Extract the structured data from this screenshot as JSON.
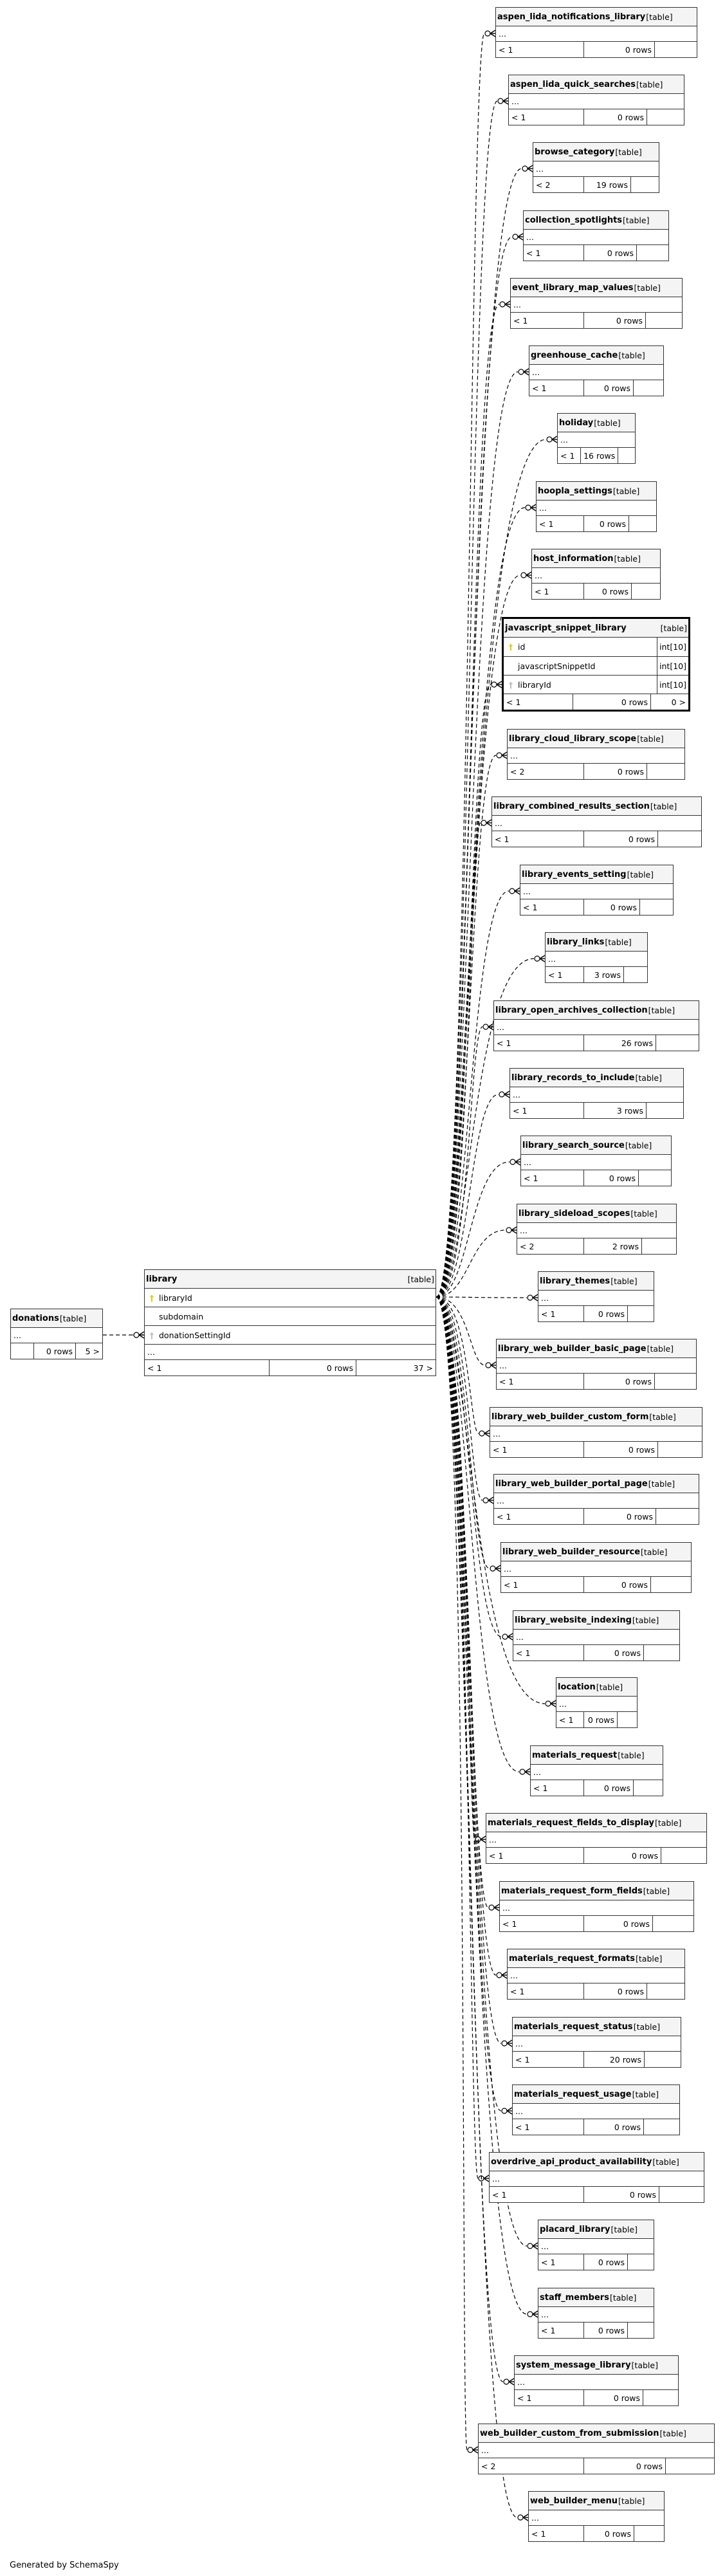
{
  "footer": "Generated by SchemaSpy",
  "colors": {
    "primary_key": "#d8d000",
    "foreign_key": "#bbbbbb",
    "header_bg": "#f4f4f4",
    "border": "#333333"
  },
  "focus_table": {
    "name": "library",
    "type": "[table]",
    "columns": [
      {
        "name": "libraryId",
        "key": "primary-key"
      },
      {
        "name": "subdomain",
        "key": ""
      },
      {
        "name": "donationSettingId",
        "key": "foreign-key"
      },
      {
        "name": "...",
        "key": ""
      }
    ],
    "footer": {
      "parents": "< 1",
      "rows": "0 rows",
      "children": "37 >"
    }
  },
  "parent_table": {
    "name": "donations",
    "type": "[table]",
    "ellipsis": "...",
    "footer": {
      "parents": "",
      "rows": "0 rows",
      "children": "5 >"
    }
  },
  "child_tables": [
    {
      "name": "aspen_lida_notifications_library",
      "type": "[table]",
      "ellipsis": "...",
      "parents": "< 1",
      "rows": "0 rows",
      "children": ""
    },
    {
      "name": "aspen_lida_quick_searches",
      "type": "[table]",
      "ellipsis": "...",
      "parents": "< 1",
      "rows": "0 rows",
      "children": ""
    },
    {
      "name": "browse_category",
      "type": "[table]",
      "ellipsis": "...",
      "parents": "< 2",
      "rows": "19 rows",
      "children": ""
    },
    {
      "name": "collection_spotlights",
      "type": "[table]",
      "ellipsis": "...",
      "parents": "< 1",
      "rows": "0 rows",
      "children": ""
    },
    {
      "name": "event_library_map_values",
      "type": "[table]",
      "ellipsis": "...",
      "parents": "< 1",
      "rows": "0 rows",
      "children": ""
    },
    {
      "name": "greenhouse_cache",
      "type": "[table]",
      "ellipsis": "...",
      "parents": "< 1",
      "rows": "0 rows",
      "children": ""
    },
    {
      "name": "holiday",
      "type": "[table]",
      "ellipsis": "...",
      "parents": "< 1",
      "rows": "16 rows",
      "children": ""
    },
    {
      "name": "hoopla_settings",
      "type": "[table]",
      "ellipsis": "...",
      "parents": "< 1",
      "rows": "0 rows",
      "children": ""
    },
    {
      "name": "host_information",
      "type": "[table]",
      "ellipsis": "...",
      "parents": "< 1",
      "rows": "0 rows",
      "children": ""
    },
    {
      "name": "javascript_snippet_library",
      "type": "[table]",
      "parents": "< 1",
      "rows": "0 rows",
      "children": "0 >",
      "columns": [
        {
          "name": "id",
          "type": "int[10]",
          "key": "primary-key"
        },
        {
          "name": "javascriptSnippetId",
          "type": "int[10]",
          "key": ""
        },
        {
          "name": "libraryId",
          "type": "int[10]",
          "key": "foreign-key"
        }
      ]
    },
    {
      "name": "library_cloud_library_scope",
      "type": "[table]",
      "ellipsis": "...",
      "parents": "< 2",
      "rows": "0 rows",
      "children": ""
    },
    {
      "name": "library_combined_results_section",
      "type": "[table]",
      "ellipsis": "...",
      "parents": "< 1",
      "rows": "0 rows",
      "children": ""
    },
    {
      "name": "library_events_setting",
      "type": "[table]",
      "ellipsis": "...",
      "parents": "< 1",
      "rows": "0 rows",
      "children": ""
    },
    {
      "name": "library_links",
      "type": "[table]",
      "ellipsis": "...",
      "parents": "< 1",
      "rows": "3 rows",
      "children": ""
    },
    {
      "name": "library_open_archives_collection",
      "type": "[table]",
      "ellipsis": "...",
      "parents": "< 1",
      "rows": "26 rows",
      "children": ""
    },
    {
      "name": "library_records_to_include",
      "type": "[table]",
      "ellipsis": "...",
      "parents": "< 1",
      "rows": "3 rows",
      "children": ""
    },
    {
      "name": "library_search_source",
      "type": "[table]",
      "ellipsis": "...",
      "parents": "< 1",
      "rows": "0 rows",
      "children": ""
    },
    {
      "name": "library_sideload_scopes",
      "type": "[table]",
      "ellipsis": "...",
      "parents": "< 2",
      "rows": "2 rows",
      "children": ""
    },
    {
      "name": "library_themes",
      "type": "[table]",
      "ellipsis": "...",
      "parents": "< 1",
      "rows": "0 rows",
      "children": ""
    },
    {
      "name": "library_web_builder_basic_page",
      "type": "[table]",
      "ellipsis": "...",
      "parents": "< 1",
      "rows": "0 rows",
      "children": ""
    },
    {
      "name": "library_web_builder_custom_form",
      "type": "[table]",
      "ellipsis": "...",
      "parents": "< 1",
      "rows": "0 rows",
      "children": ""
    },
    {
      "name": "library_web_builder_portal_page",
      "type": "[table]",
      "ellipsis": "...",
      "parents": "< 1",
      "rows": "0 rows",
      "children": ""
    },
    {
      "name": "library_web_builder_resource",
      "type": "[table]",
      "ellipsis": "...",
      "parents": "< 1",
      "rows": "0 rows",
      "children": ""
    },
    {
      "name": "library_website_indexing",
      "type": "[table]",
      "ellipsis": "...",
      "parents": "< 1",
      "rows": "0 rows",
      "children": ""
    },
    {
      "name": "location",
      "type": "[table]",
      "ellipsis": "...",
      "parents": "< 1",
      "rows": "0 rows",
      "children": ""
    },
    {
      "name": "materials_request",
      "type": "[table]",
      "ellipsis": "...",
      "parents": "< 1",
      "rows": "0 rows",
      "children": ""
    },
    {
      "name": "materials_request_fields_to_display",
      "type": "[table]",
      "ellipsis": "...",
      "parents": "< 1",
      "rows": "0 rows",
      "children": ""
    },
    {
      "name": "materials_request_form_fields",
      "type": "[table]",
      "ellipsis": "...",
      "parents": "< 1",
      "rows": "0 rows",
      "children": ""
    },
    {
      "name": "materials_request_formats",
      "type": "[table]",
      "ellipsis": "...",
      "parents": "< 1",
      "rows": "0 rows",
      "children": ""
    },
    {
      "name": "materials_request_status",
      "type": "[table]",
      "ellipsis": "...",
      "parents": "< 1",
      "rows": "20 rows",
      "children": ""
    },
    {
      "name": "materials_request_usage",
      "type": "[table]",
      "ellipsis": "...",
      "parents": "< 1",
      "rows": "0 rows",
      "children": ""
    },
    {
      "name": "overdrive_api_product_availability",
      "type": "[table]",
      "ellipsis": "...",
      "parents": "< 1",
      "rows": "0 rows",
      "children": ""
    },
    {
      "name": "placard_library",
      "type": "[table]",
      "ellipsis": "...",
      "parents": "< 1",
      "rows": "0 rows",
      "children": ""
    },
    {
      "name": "staff_members",
      "type": "[table]",
      "ellipsis": "...",
      "parents": "< 1",
      "rows": "0 rows",
      "children": ""
    },
    {
      "name": "system_message_library",
      "type": "[table]",
      "ellipsis": "...",
      "parents": "< 1",
      "rows": "0 rows",
      "children": ""
    },
    {
      "name": "web_builder_custom_from_submission",
      "type": "[table]",
      "ellipsis": "...",
      "parents": "< 2",
      "rows": "0 rows",
      "children": ""
    },
    {
      "name": "web_builder_menu",
      "type": "[table]",
      "ellipsis": "...",
      "parents": "< 1",
      "rows": "0 rows",
      "children": ""
    }
  ]
}
